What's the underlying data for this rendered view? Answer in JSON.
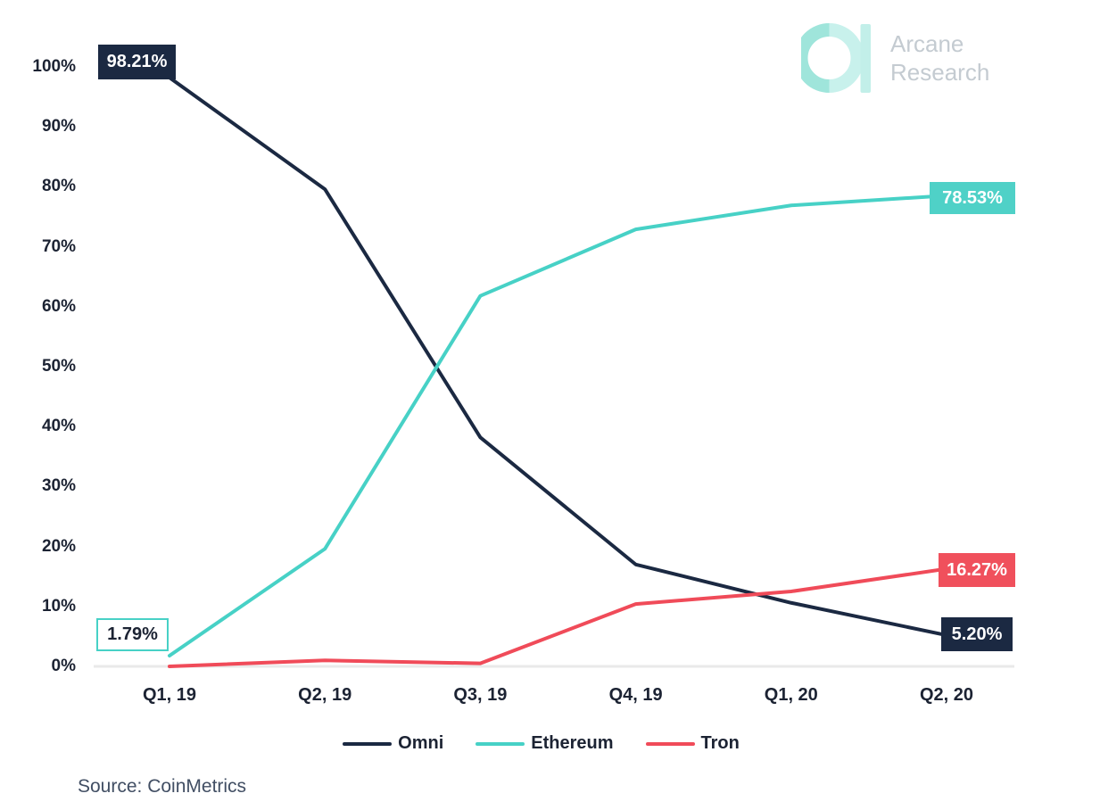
{
  "logo": {
    "line1": "Arcane",
    "line2": "Research"
  },
  "source_label": "Source: CoinMetrics",
  "colors": {
    "navy": "#1b2942",
    "teal": "#47d1c6",
    "red": "#f04b59",
    "axis_text": "#1c2333",
    "baseline": "#e9e9e9",
    "logo_mint_dark": "#9fe5db",
    "logo_mint_light": "#c8f1ec",
    "logo_text": "#c4cbd1"
  },
  "chart_data": {
    "type": "line",
    "title": "",
    "xlabel": "",
    "ylabel": "",
    "categories": [
      "Q1, 19",
      "Q2, 19",
      "Q3, 19",
      "Q4, 19",
      "Q1, 20",
      "Q2, 20"
    ],
    "series": [
      {
        "name": "Omni",
        "color": "#1b2942",
        "values": [
          98.21,
          79.6,
          38.2,
          17.0,
          10.6,
          5.2
        ]
      },
      {
        "name": "Ethereum",
        "color": "#47d1c6",
        "values": [
          1.79,
          19.6,
          61.8,
          72.9,
          76.9,
          78.53
        ]
      },
      {
        "name": "Tron",
        "color": "#f04b59",
        "values": [
          0.0,
          1.0,
          0.5,
          10.4,
          12.5,
          16.27
        ]
      }
    ],
    "y_ticks": [
      "0%",
      "10%",
      "20%",
      "30%",
      "40%",
      "50%",
      "60%",
      "70%",
      "80%",
      "90%",
      "100%"
    ],
    "ylim": [
      0,
      100
    ],
    "grid": false,
    "legend_position": "bottom",
    "annotations": [
      {
        "text": "98.21%",
        "series": "Omni",
        "point": "Q1, 19"
      },
      {
        "text": "1.79%",
        "series": "Ethereum",
        "point": "Q1, 19"
      },
      {
        "text": "78.53%",
        "series": "Ethereum",
        "point": "Q2, 20"
      },
      {
        "text": "16.27%",
        "series": "Tron",
        "point": "Q2, 20"
      },
      {
        "text": "5.20%",
        "series": "Omni",
        "point": "Q2, 20"
      }
    ]
  }
}
